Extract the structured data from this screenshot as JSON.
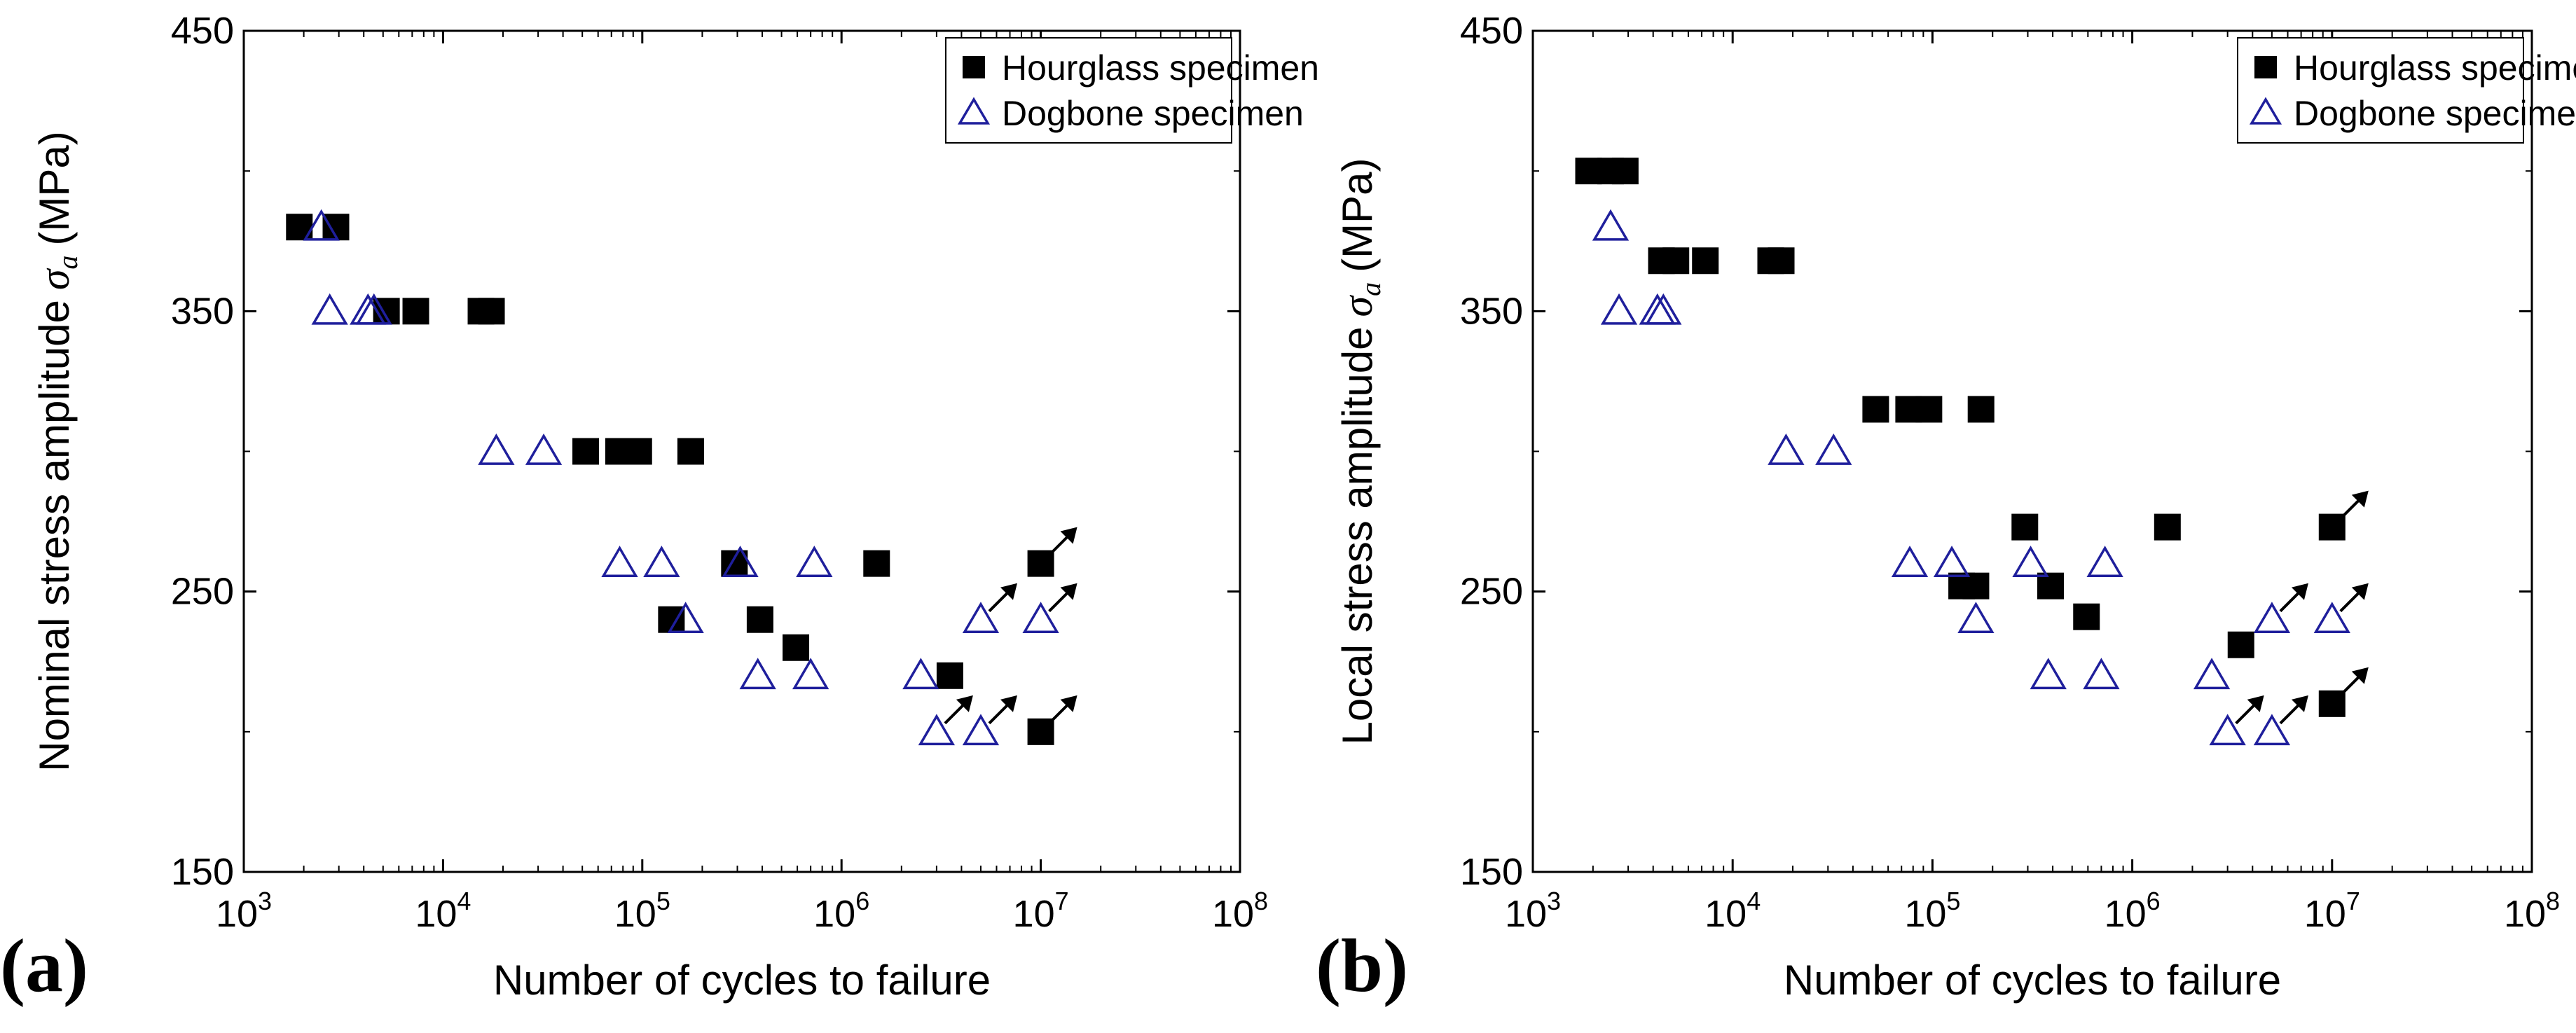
{
  "chart_data": [
    {
      "type": "scatter",
      "panel_label": "(a)",
      "xlabel": "Number of cycles to failure",
      "ylabel": "Nominal stress amplitude",
      "ylabel_symbol": "σ",
      "ylabel_subscript": "a",
      "ylabel_unit": "(MPa)",
      "x_scale": "log",
      "xlim": [
        1000,
        100000000
      ],
      "x_ticks": [
        {
          "exponent": 3,
          "base": "10",
          "power": "3"
        },
        {
          "exponent": 4,
          "base": "10",
          "power": "4"
        },
        {
          "exponent": 5,
          "base": "10",
          "power": "5"
        },
        {
          "exponent": 6,
          "base": "10",
          "power": "6"
        },
        {
          "exponent": 7,
          "base": "10",
          "power": "7"
        },
        {
          "exponent": 8,
          "base": "10",
          "power": "8"
        }
      ],
      "ylim": [
        150,
        450
      ],
      "y_ticks": [
        {
          "value": 150,
          "label": "150"
        },
        {
          "value": 250,
          "label": "250"
        },
        {
          "value": 350,
          "label": "350"
        },
        {
          "value": 450,
          "label": "450"
        }
      ],
      "legend_position": "top-right",
      "series": [
        {
          "name": "Hourglass specimen",
          "marker": "filled-square",
          "color": "#000000",
          "points": [
            {
              "x": 1900,
              "y": 380
            },
            {
              "x": 2900,
              "y": 380
            },
            {
              "x": 5200,
              "y": 350
            },
            {
              "x": 7300,
              "y": 350
            },
            {
              "x": 15500,
              "y": 350
            },
            {
              "x": 17500,
              "y": 350
            },
            {
              "x": 52000,
              "y": 300
            },
            {
              "x": 76000,
              "y": 300
            },
            {
              "x": 96000,
              "y": 300
            },
            {
              "x": 175000,
              "y": 300
            },
            {
              "x": 140000,
              "y": 240
            },
            {
              "x": 290000,
              "y": 260
            },
            {
              "x": 390000,
              "y": 240
            },
            {
              "x": 590000,
              "y": 230
            },
            {
              "x": 1500000,
              "y": 260
            },
            {
              "x": 3500000,
              "y": 220
            },
            {
              "x": 10000000,
              "y": 260,
              "runout": true
            },
            {
              "x": 10000000,
              "y": 200,
              "runout": true
            }
          ]
        },
        {
          "name": "Dogbone specimen",
          "marker": "open-triangle",
          "color": "#1f1f9c",
          "points": [
            {
              "x": 2450,
              "y": 380
            },
            {
              "x": 2700,
              "y": 350
            },
            {
              "x": 4200,
              "y": 350
            },
            {
              "x": 4500,
              "y": 350
            },
            {
              "x": 18500,
              "y": 300
            },
            {
              "x": 32000,
              "y": 300
            },
            {
              "x": 77000,
              "y": 260
            },
            {
              "x": 125000,
              "y": 260
            },
            {
              "x": 165000,
              "y": 240
            },
            {
              "x": 310000,
              "y": 260
            },
            {
              "x": 380000,
              "y": 220
            },
            {
              "x": 700000,
              "y": 220
            },
            {
              "x": 730000,
              "y": 260
            },
            {
              "x": 2500000,
              "y": 220
            },
            {
              "x": 3000000,
              "y": 200,
              "runout": true
            },
            {
              "x": 5000000,
              "y": 200,
              "runout": true
            },
            {
              "x": 5000000,
              "y": 240,
              "runout": true
            },
            {
              "x": 10000000,
              "y": 240,
              "runout": true
            }
          ]
        }
      ]
    },
    {
      "type": "scatter",
      "panel_label": "(b)",
      "xlabel": "Number of cycles to failure",
      "ylabel": "Local stress amplitude",
      "ylabel_symbol": "σ",
      "ylabel_subscript": "a",
      "ylabel_unit": "(MPa)",
      "x_scale": "log",
      "xlim": [
        1000,
        100000000
      ],
      "x_ticks": [
        {
          "exponent": 3,
          "base": "10",
          "power": "3"
        },
        {
          "exponent": 4,
          "base": "10",
          "power": "4"
        },
        {
          "exponent": 5,
          "base": "10",
          "power": "5"
        },
        {
          "exponent": 6,
          "base": "10",
          "power": "6"
        },
        {
          "exponent": 7,
          "base": "10",
          "power": "7"
        },
        {
          "exponent": 8,
          "base": "10",
          "power": "8"
        }
      ],
      "ylim": [
        150,
        450
      ],
      "y_ticks": [
        {
          "value": 150,
          "label": "150"
        },
        {
          "value": 250,
          "label": "250"
        },
        {
          "value": 350,
          "label": "350"
        },
        {
          "value": 450,
          "label": "450"
        }
      ],
      "legend_position": "top-right",
      "series": [
        {
          "name": "Hourglass specimen",
          "marker": "filled-square",
          "color": "#000000",
          "points": [
            {
              "x": 1900,
              "y": 400
            },
            {
              "x": 2450,
              "y": 400
            },
            {
              "x": 2900,
              "y": 400
            },
            {
              "x": 4400,
              "y": 368
            },
            {
              "x": 5200,
              "y": 368
            },
            {
              "x": 7300,
              "y": 368
            },
            {
              "x": 15500,
              "y": 368
            },
            {
              "x": 17500,
              "y": 368
            },
            {
              "x": 52000,
              "y": 315
            },
            {
              "x": 76000,
              "y": 315
            },
            {
              "x": 96000,
              "y": 315
            },
            {
              "x": 175000,
              "y": 315
            },
            {
              "x": 290000,
              "y": 273
            },
            {
              "x": 140000,
              "y": 252
            },
            {
              "x": 165000,
              "y": 252
            },
            {
              "x": 390000,
              "y": 252
            },
            {
              "x": 590000,
              "y": 241
            },
            {
              "x": 1500000,
              "y": 273
            },
            {
              "x": 3500000,
              "y": 231
            },
            {
              "x": 10000000,
              "y": 273,
              "runout": true
            },
            {
              "x": 10000000,
              "y": 210,
              "runout": true
            }
          ]
        },
        {
          "name": "Dogbone specimen",
          "marker": "open-triangle",
          "color": "#1f1f9c",
          "points": [
            {
              "x": 2450,
              "y": 380
            },
            {
              "x": 2700,
              "y": 350
            },
            {
              "x": 4200,
              "y": 350
            },
            {
              "x": 4500,
              "y": 350
            },
            {
              "x": 18500,
              "y": 300
            },
            {
              "x": 32000,
              "y": 300
            },
            {
              "x": 77000,
              "y": 260
            },
            {
              "x": 125000,
              "y": 260
            },
            {
              "x": 165000,
              "y": 240
            },
            {
              "x": 310000,
              "y": 260
            },
            {
              "x": 380000,
              "y": 220
            },
            {
              "x": 700000,
              "y": 220
            },
            {
              "x": 730000,
              "y": 260
            },
            {
              "x": 2500000,
              "y": 220
            },
            {
              "x": 3000000,
              "y": 200,
              "runout": true
            },
            {
              "x": 5000000,
              "y": 200,
              "runout": true
            },
            {
              "x": 5000000,
              "y": 240,
              "runout": true
            },
            {
              "x": 10000000,
              "y": 240,
              "runout": true
            }
          ]
        }
      ]
    }
  ]
}
